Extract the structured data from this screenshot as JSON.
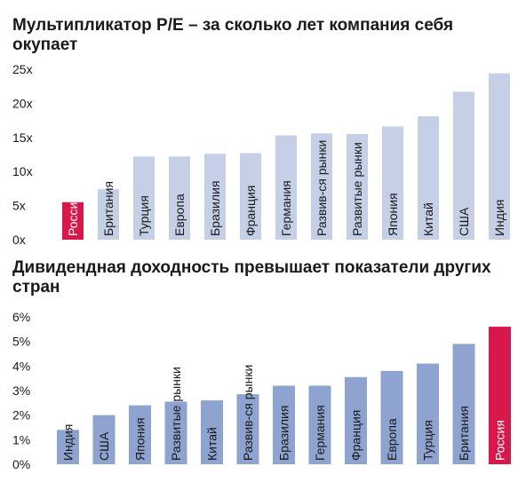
{
  "chart_data": [
    {
      "type": "bar",
      "title": "Мультипликатор P/E – за сколько лет компания себя окупает",
      "categories": [
        "Россия",
        "Британия",
        "Турция",
        "Европа",
        "Бразилия",
        "Франция",
        "Германия",
        "Развив-ся рынки",
        "Развитые рынки",
        "Япония",
        "Китай",
        "США",
        "Индия"
      ],
      "values": [
        5.5,
        7.4,
        12.2,
        12.2,
        12.6,
        12.7,
        15.3,
        15.6,
        15.5,
        16.6,
        18.1,
        21.7,
        24.4
      ],
      "highlight": "Россия",
      "yticks": [
        "0x",
        "5x",
        "10x",
        "15x",
        "20x",
        "25x"
      ],
      "ylim": [
        0,
        25
      ],
      "colors": {
        "bar": "#c5d0e6",
        "highlight": "#d8174a"
      }
    },
    {
      "type": "bar",
      "title": "Дивидендная доходность превышает показатели других стран",
      "categories": [
        "Индия",
        "США",
        "Япония",
        "Развитые рынки",
        "Китай",
        "Развив-ся рынки",
        "Бразилия",
        "Германия",
        "Франция",
        "Европа",
        "Турция",
        "Британия",
        "Россия"
      ],
      "values": [
        1.4,
        2.0,
        2.4,
        2.55,
        2.6,
        2.85,
        3.2,
        3.2,
        3.55,
        3.8,
        4.1,
        4.9,
        5.6
      ],
      "highlight": "Россия",
      "yticks": [
        "0%",
        "1%",
        "2%",
        "3%",
        "4%",
        "5%",
        "6%"
      ],
      "ylim": [
        0,
        6
      ],
      "colors": {
        "bar": "#8fa3d0",
        "highlight": "#d8174a"
      }
    }
  ]
}
